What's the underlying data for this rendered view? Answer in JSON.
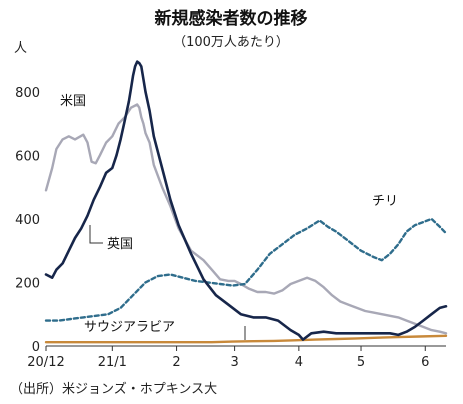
{
  "chart_data": {
    "type": "line",
    "title": "新規感染者数の推移",
    "subtitle": "（100万人あたり）",
    "ylabel": "人",
    "ylim": [
      0,
      900
    ],
    "yticks": [
      0,
      200,
      400,
      600,
      800
    ],
    "ytick_labels": [
      "0",
      "200",
      "400",
      "600",
      "800"
    ],
    "xlim": [
      0,
      193
    ],
    "xticks": [
      0,
      32,
      63,
      91,
      122,
      152,
      183
    ],
    "xtick_labels": [
      "20/12",
      "21/1",
      "2",
      "3",
      "4",
      "5",
      "6"
    ],
    "grid": false,
    "source": "（出所）米ジョンズ・ホプキンス大",
    "series": [
      {
        "name": "米国",
        "color": "#a8a8b6",
        "style": "solid",
        "x": [
          0,
          3,
          5,
          8,
          11,
          14,
          18,
          20,
          22,
          24,
          26,
          29,
          32,
          35,
          38,
          41,
          44,
          45,
          46,
          47,
          48,
          50,
          52,
          56,
          60,
          64,
          70,
          76,
          80,
          84,
          88,
          91,
          94,
          98,
          102,
          106,
          110,
          114,
          118,
          122,
          126,
          130,
          134,
          138,
          142,
          146,
          150,
          154,
          158,
          162,
          166,
          170,
          174,
          178,
          182,
          186,
          190,
          193
        ],
        "values": [
          490,
          560,
          620,
          650,
          660,
          650,
          665,
          640,
          580,
          575,
          600,
          640,
          660,
          700,
          720,
          750,
          760,
          750,
          720,
          700,
          670,
          640,
          570,
          500,
          440,
          370,
          300,
          270,
          240,
          210,
          205,
          205,
          195,
          180,
          170,
          170,
          165,
          175,
          195,
          205,
          215,
          205,
          185,
          160,
          140,
          130,
          120,
          110,
          105,
          100,
          95,
          90,
          80,
          70,
          60,
          50,
          45,
          40
        ]
      },
      {
        "name": "英国",
        "color": "#17264a",
        "style": "solid",
        "x": [
          0,
          3,
          5,
          8,
          11,
          14,
          17,
          20,
          23,
          26,
          29,
          32,
          34,
          36,
          38,
          40,
          41,
          42,
          43,
          44,
          45,
          46,
          47,
          48,
          50,
          52,
          56,
          60,
          64,
          70,
          76,
          82,
          88,
          94,
          100,
          106,
          112,
          118,
          122,
          124,
          128,
          134,
          140,
          150,
          160,
          166,
          170,
          174,
          178,
          182,
          186,
          190,
          193
        ],
        "values": [
          225,
          215,
          240,
          260,
          300,
          340,
          370,
          410,
          460,
          500,
          545,
          560,
          600,
          650,
          710,
          770,
          810,
          850,
          880,
          895,
          890,
          880,
          840,
          800,
          740,
          660,
          560,
          460,
          380,
          290,
          210,
          160,
          130,
          100,
          90,
          90,
          80,
          50,
          35,
          20,
          40,
          45,
          40,
          40,
          40,
          40,
          35,
          45,
          60,
          80,
          100,
          120,
          125
        ]
      },
      {
        "name": "チリ",
        "color": "#2f6d8c",
        "style": "dashed",
        "x": [
          0,
          6,
          12,
          18,
          24,
          30,
          36,
          42,
          48,
          54,
          60,
          66,
          72,
          78,
          84,
          90,
          96,
          102,
          108,
          114,
          120,
          126,
          132,
          136,
          140,
          146,
          152,
          158,
          162,
          166,
          170,
          174,
          178,
          182,
          186,
          190,
          193
        ],
        "values": [
          80,
          80,
          85,
          90,
          95,
          100,
          120,
          160,
          200,
          220,
          225,
          215,
          205,
          200,
          195,
          190,
          195,
          240,
          290,
          320,
          350,
          370,
          395,
          375,
          360,
          330,
          300,
          280,
          270,
          290,
          320,
          360,
          380,
          390,
          400,
          375,
          355
        ]
      },
      {
        "name": "サウジアラビア",
        "color": "#c8893a",
        "style": "solid",
        "x": [
          0,
          10,
          20,
          30,
          40,
          50,
          60,
          70,
          80,
          90,
          100,
          110,
          120,
          130,
          140,
          150,
          160,
          170,
          180,
          193
        ],
        "values": [
          12,
          12,
          12,
          12,
          12,
          12,
          12,
          12,
          12,
          14,
          15,
          16,
          18,
          20,
          22,
          24,
          26,
          28,
          30,
          32
        ]
      }
    ]
  }
}
